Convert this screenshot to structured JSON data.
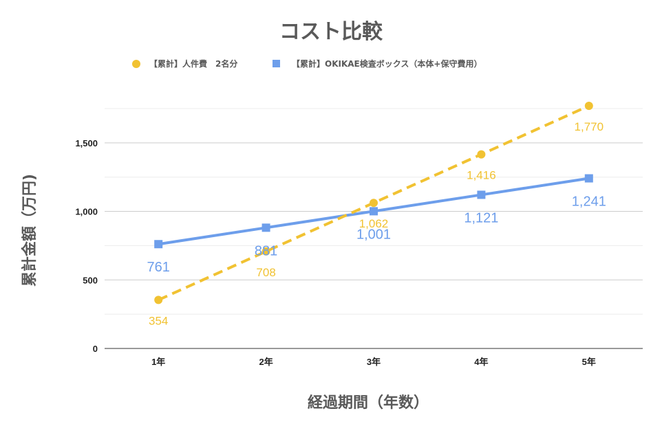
{
  "chart_data": {
    "type": "line",
    "title": "コスト比較",
    "xlabel": "経過期間（年数）",
    "ylabel": "累計金額（万円)",
    "categories": [
      "1年",
      "2年",
      "3年",
      "4年",
      "5年"
    ],
    "ylim": [
      0,
      1800
    ],
    "yticks": [
      0,
      500,
      1000,
      1500
    ],
    "ytick_labels": [
      "0",
      "500",
      "1,000",
      "1,500"
    ],
    "grid": true,
    "legend_position": "top",
    "series": [
      {
        "name": "【累計】人件費　2名分",
        "values": [
          354,
          708,
          1062,
          1416,
          1770
        ],
        "labels": [
          "354",
          "708",
          "1,062",
          "1,416",
          "1,770"
        ],
        "color": "#f1c232",
        "marker": "circle",
        "line_style": "dashed"
      },
      {
        "name": "【累計】OKIKAE検査ボックス（本体+保守費用）",
        "values": [
          761,
          881,
          1001,
          1121,
          1241
        ],
        "labels": [
          "761",
          "881",
          "1,001",
          "1,121",
          "1,241"
        ],
        "color": "#6d9eeb",
        "marker": "square",
        "line_style": "solid"
      }
    ]
  }
}
